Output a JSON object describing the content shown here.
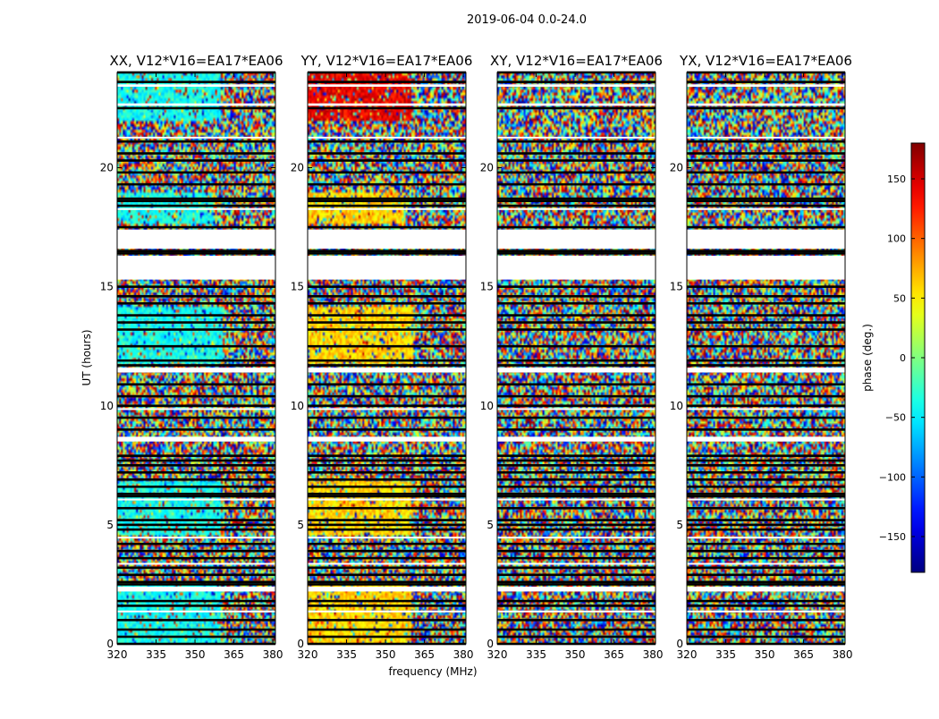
{
  "chart_data": {
    "type": "heatmap",
    "suptitle": "2019-06-04 0.0-24.0",
    "xlabel": "frequency (MHz)",
    "ylabel": "UT (hours)",
    "xlim": [
      320,
      381
    ],
    "ylim": [
      0,
      24
    ],
    "xticks": [
      320,
      335,
      350,
      365,
      380
    ],
    "yticks": [
      0,
      5,
      10,
      15,
      20
    ],
    "colorbar": {
      "label": "phase (deg.)",
      "range": [
        -180,
        180
      ],
      "ticks": [
        "150",
        "100",
        "50",
        "0",
        "−50",
        "−100",
        "−150"
      ],
      "tick_values": [
        150,
        100,
        50,
        0,
        -50,
        -100,
        -150
      ],
      "colormap": "jet"
    },
    "panels": [
      {
        "title": "XX, V12*V16=EA17*EA06",
        "coherent_phase_deg": -40,
        "coherent_regions": [
          {
            "t0": 0.0,
            "t1": 2.5,
            "f0": 320,
            "f1": 360
          },
          {
            "t0": 4.6,
            "t1": 6.8,
            "f0": 320,
            "f1": 360
          },
          {
            "t0": 11.8,
            "t1": 14.2,
            "f0": 320,
            "f1": 361
          },
          {
            "t0": 17.6,
            "t1": 18.9,
            "f0": 320,
            "f1": 357
          },
          {
            "t0": 22.0,
            "t1": 24.0,
            "f0": 320,
            "f1": 360
          }
        ]
      },
      {
        "title": "YY, V12*V16=EA17*EA06",
        "coherent_phase_deg": 60,
        "coherent_regions": [
          {
            "t0": 0.0,
            "t1": 2.5,
            "f0": 320,
            "f1": 360
          },
          {
            "t0": 4.6,
            "t1": 6.8,
            "f0": 320,
            "f1": 360
          },
          {
            "t0": 11.8,
            "t1": 14.2,
            "f0": 320,
            "f1": 361
          },
          {
            "t0": 17.6,
            "t1": 18.9,
            "f0": 320,
            "f1": 357
          },
          {
            "t0": 22.0,
            "t1": 24.0,
            "f0": 320,
            "f1": 360,
            "phase_deg": 140
          }
        ]
      },
      {
        "title": "XY, V12*V16=EA17*EA06",
        "coherent_regions": []
      },
      {
        "title": "YX, V12*V16=EA17*EA06",
        "coherent_regions": []
      }
    ],
    "blank_time_ranges": [
      [
        17.4,
        16.6
      ],
      [
        16.3,
        15.3
      ],
      [
        11.6,
        11.4
      ],
      [
        8.7,
        8.5
      ],
      [
        2.4,
        2.2
      ],
      [
        23.5,
        23.4
      ],
      [
        22.7,
        22.6
      ],
      [
        21.3,
        21.25
      ],
      [
        18.3,
        18.25
      ],
      [
        9.9,
        9.85
      ],
      [
        6.1,
        6.05
      ],
      [
        4.5,
        4.45
      ],
      [
        3.4,
        3.35
      ],
      [
        1.4,
        1.35
      ]
    ],
    "flagged_time_lines": [
      24.0,
      23.6,
      22.5,
      21.1,
      20.6,
      20.3,
      19.8,
      19.3,
      18.7,
      18.6,
      18.4,
      17.5,
      16.5,
      16.4,
      15.4,
      15.0,
      14.6,
      14.3,
      13.8,
      13.5,
      13.2,
      12.5,
      11.9,
      11.7,
      10.9,
      10.4,
      10.0,
      9.5,
      9.0,
      8.6,
      7.9,
      7.7,
      7.5,
      7.2,
      6.9,
      6.6,
      6.3,
      6.2,
      5.7,
      5.2,
      5.0,
      4.8,
      4.2,
      3.9,
      3.6,
      3.2,
      2.9,
      2.6,
      2.5,
      1.8,
      1.6,
      1.0,
      0.6,
      0.3,
      0.0
    ]
  }
}
